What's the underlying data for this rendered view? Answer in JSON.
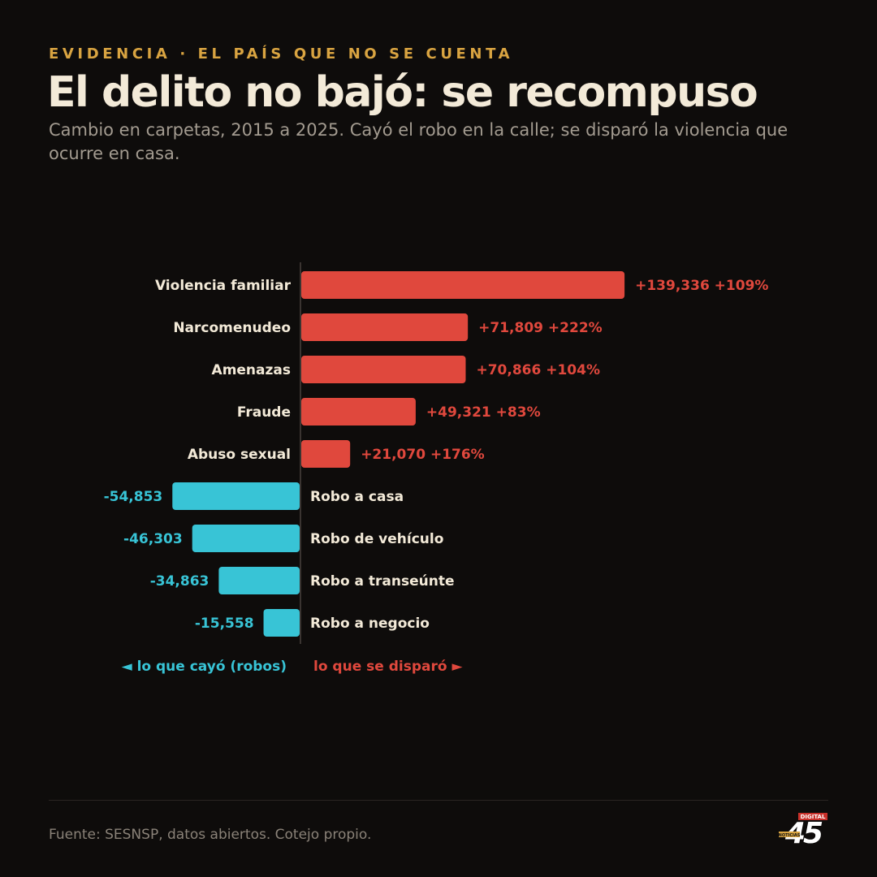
{
  "header": {
    "kicker": "EVIDENCIA · EL PAÍS QUE NO SE CUENTA",
    "title": "El delito no bajó: se recompuso",
    "subtitle": "Cambio en carpetas, 2015 a 2025. Cayó el robo en la calle; se disparó la violencia que ocurre en casa."
  },
  "legend": {
    "down": "◄ lo que cayó (robos)",
    "up": "lo que se disparó ►"
  },
  "footer": {
    "source": "Fuente: SESNSP, datos abiertos. Cotejo propio.",
    "logo_number": "45",
    "logo_badge": "DIGITAL",
    "logo_tag": "NOTICIAS"
  },
  "colors": {
    "positive": "#e0483d",
    "negative": "#38c4d6",
    "label": "#f3ead8",
    "axis": "#3a3431"
  },
  "chart_data": {
    "type": "bar",
    "orientation": "horizontal-diverging",
    "xlim": [
      -70000,
      140000
    ],
    "grid": false,
    "categories": [
      "Violencia familiar",
      "Narcomenudeo",
      "Amenazas",
      "Fraude",
      "Abuso sexual",
      "Robo a casa",
      "Robo de vehículo",
      "Robo a transeúnte",
      "Robo a negocio"
    ],
    "values": [
      139336,
      71809,
      70866,
      49321,
      21070,
      -54853,
      -46303,
      -34863,
      -15558
    ],
    "data_labels": [
      "+139,336 +109%",
      "+71,809 +222%",
      "+70,866 +104%",
      "+49,321 +83%",
      "+21,070 +176%",
      "-54,853",
      "-46,303",
      "-34,863",
      "-15,558"
    ],
    "pct_change": [
      109,
      222,
      104,
      83,
      176,
      null,
      null,
      null,
      null
    ]
  }
}
